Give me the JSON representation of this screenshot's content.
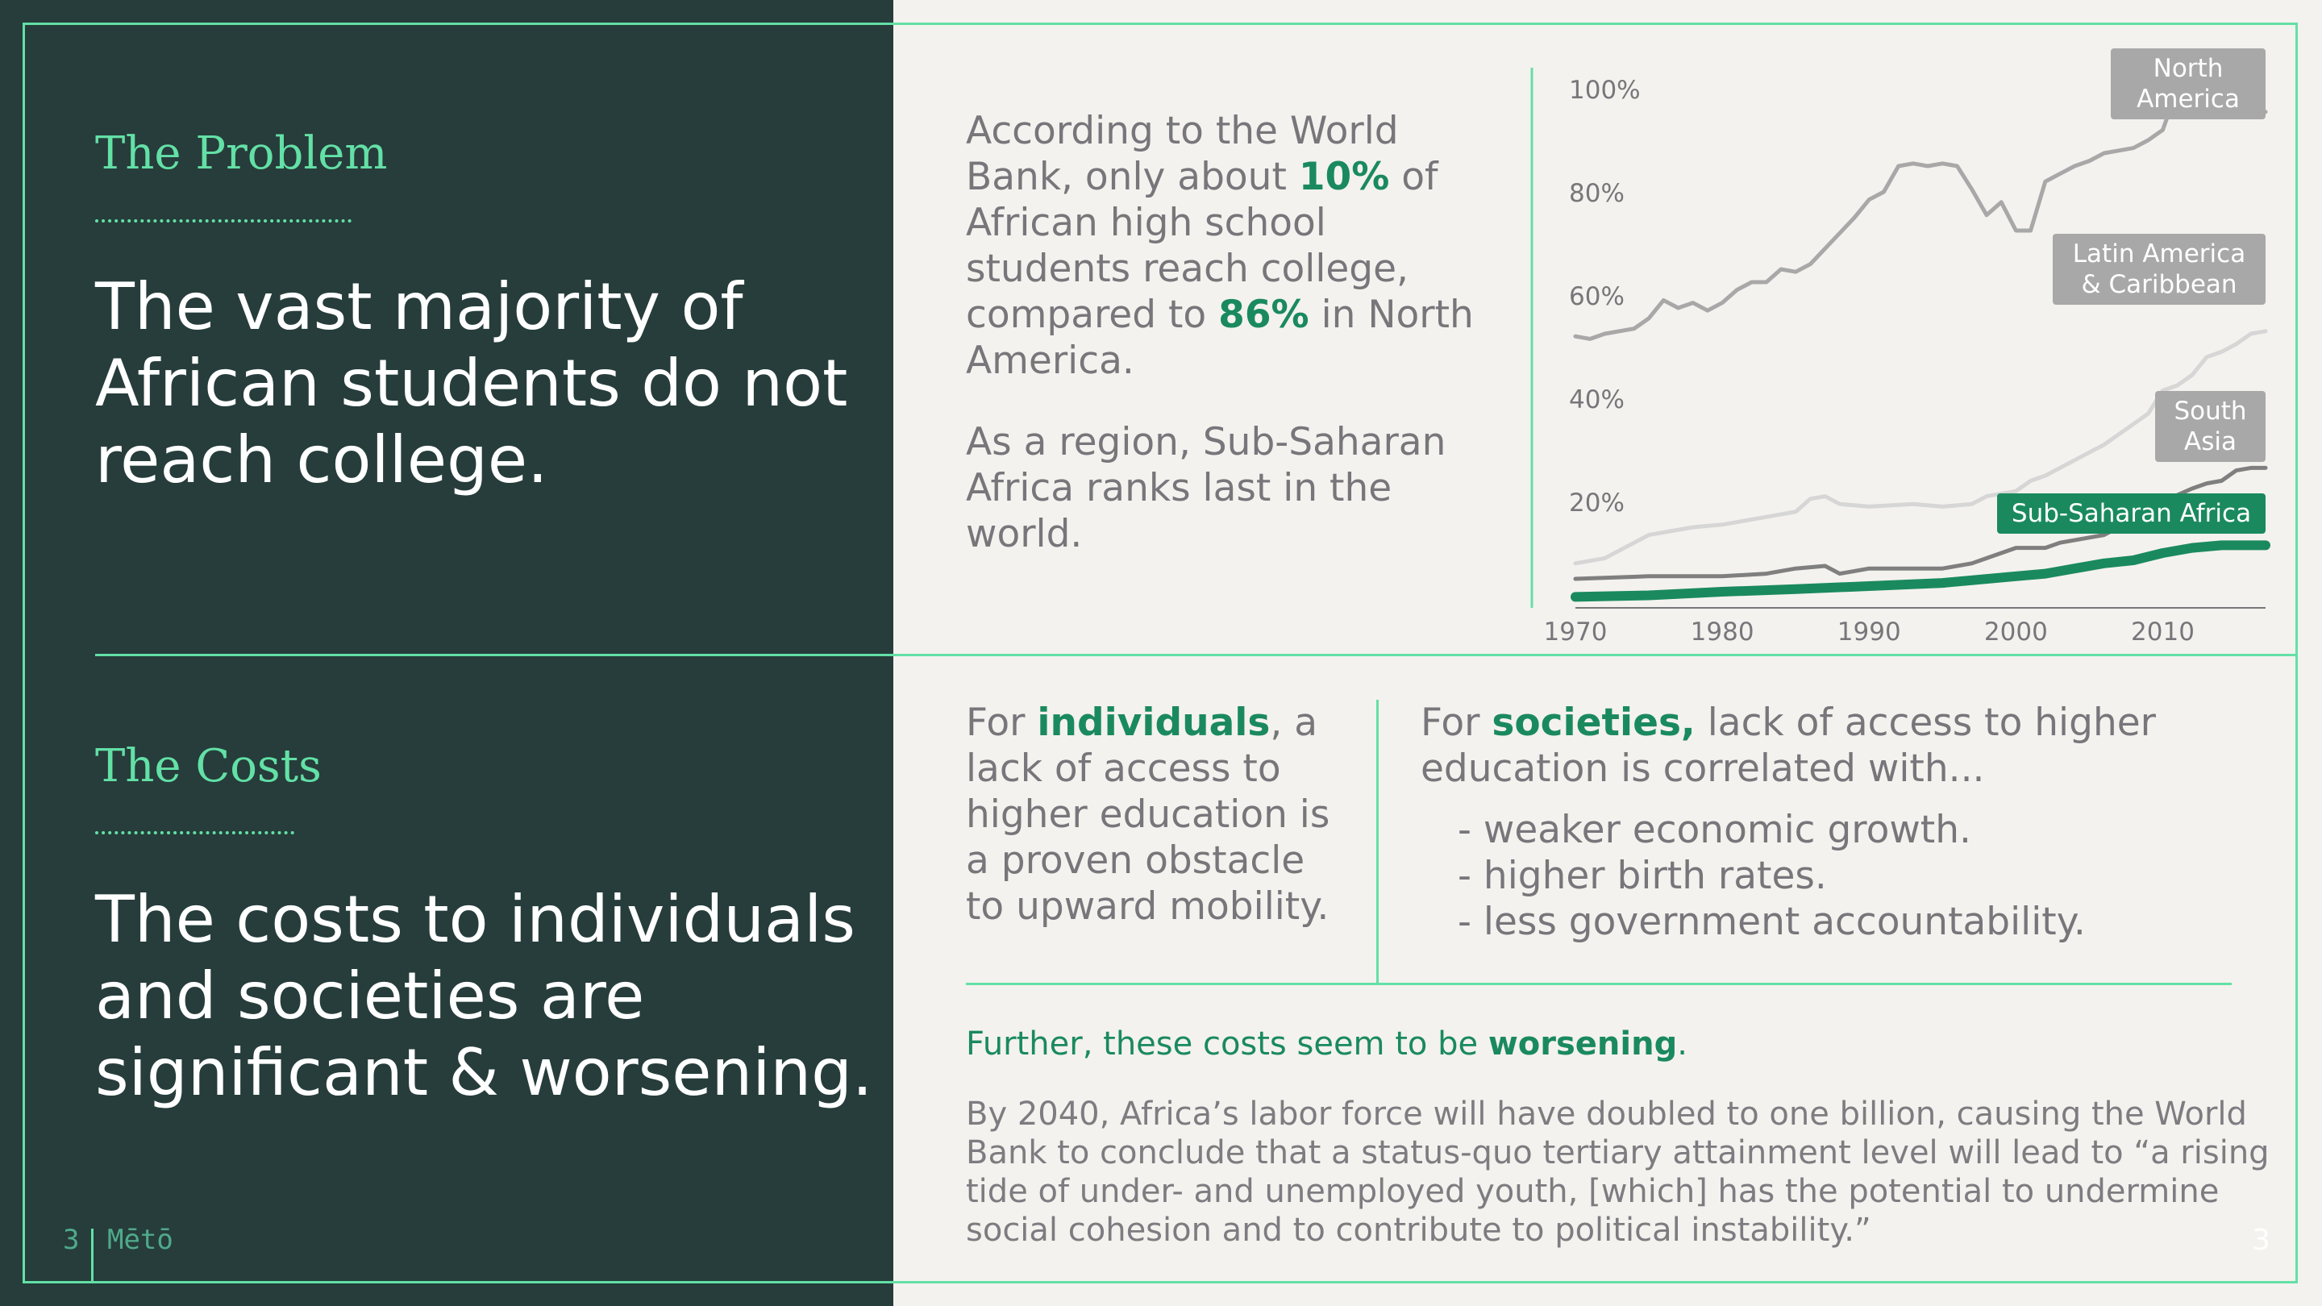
{
  "problem": {
    "section_title": "The Problem",
    "headline": "The vast majority of African students do not reach college.",
    "para1_a": "According to the World Bank, only about ",
    "para1_b": "10%",
    "para1_c": " of African high school students reach college, compared to ",
    "para1_d": "86%",
    "para1_e": " in North America.",
    "para2": "As a region, Sub-Saharan Africa ranks last in the world."
  },
  "costs": {
    "section_title": "The Costs",
    "headline": "The costs to individuals and societies are significant & worsening.",
    "ind_a": "For ",
    "ind_b": "individuals",
    "ind_c": ", a lack of access to higher education is a proven obstacle to upward mobility.",
    "soc_a": "For ",
    "soc_b": "societies,",
    "soc_c": " lack of access to higher education is correlated with...",
    "list": [
      "- weaker economic growth.",
      "- higher birth rates.",
      "- less government accountability."
    ],
    "further_a": "Further, these costs seem to be ",
    "further_b": "worsening",
    "further_c": ".",
    "quote": "By 2040, Africa’s labor force will have doubled to one billion, causing the World Bank to conclude that a status-quo tertiary attainment level will lead to “a rising tide of under- and unemployed youth, [which] has the potential to undermine social cohesion and to contribute to political instability.”"
  },
  "footer": {
    "page": "3",
    "brand": "Mētō",
    "corner_page": "3"
  },
  "colors": {
    "dark_panel": "#263d3b",
    "accent": "#63e0a6",
    "green": "#1a8a5e",
    "background": "#f4f2ee"
  },
  "chart_data": {
    "type": "line",
    "title": "",
    "xlabel": "",
    "ylabel": "",
    "xlim": [
      1970,
      2017
    ],
    "ylim": [
      0,
      100
    ],
    "xticks": [
      "1970",
      "1980",
      "1990",
      "2000",
      "2010"
    ],
    "yticks": [
      "20%",
      "40%",
      "60%",
      "80%",
      "100%"
    ],
    "grid": false,
    "series": [
      {
        "name": "North America",
        "color": "#a8a8a8",
        "x": [
          1970,
          1971,
          1972,
          1973,
          1974,
          1975,
          1976,
          1977,
          1978,
          1979,
          1980,
          1981,
          1982,
          1983,
          1984,
          1985,
          1986,
          1987,
          1988,
          1989,
          1990,
          1991,
          1992,
          1993,
          1994,
          1995,
          1996,
          1997,
          1998,
          1999,
          2000,
          2001,
          2002,
          2003,
          2004,
          2005,
          2006,
          2007,
          2008,
          2009,
          2010,
          2011,
          2012,
          2013,
          2014,
          2015,
          2016,
          2017
        ],
        "values": [
          52,
          51.5,
          52.5,
          53,
          53.5,
          55.5,
          59,
          57.5,
          58.5,
          57,
          58.5,
          61,
          62.5,
          62.5,
          65,
          64.5,
          66,
          69,
          72,
          75,
          78.5,
          80,
          85,
          85.5,
          85,
          85.5,
          85,
          80.5,
          75.5,
          78,
          72.5,
          72.5,
          82,
          83.5,
          85,
          86,
          87.5,
          88,
          88.5,
          90,
          92,
          100,
          100,
          96.5,
          95.5,
          95.5,
          95.5,
          95.5
        ]
      },
      {
        "name": "Latin America & Caribbean",
        "color": "#d6d6d6",
        "x": [
          1970,
          1972,
          1975,
          1978,
          1980,
          1983,
          1985,
          1986,
          1987,
          1988,
          1990,
          1993,
          1995,
          1997,
          1998,
          2000,
          2001,
          2002,
          2004,
          2005,
          2006,
          2008,
          2009,
          2010,
          2011,
          2012,
          2013,
          2014,
          2015,
          2016,
          2017
        ],
        "values": [
          8,
          9,
          13.5,
          15,
          15.5,
          17,
          18,
          20.5,
          21,
          19.5,
          19,
          19.5,
          19,
          19.5,
          21,
          22,
          24,
          25,
          28,
          29.5,
          31,
          35,
          37,
          41.5,
          42.5,
          44.5,
          48,
          49,
          50.5,
          52.5,
          53
        ]
      },
      {
        "name": "South Asia",
        "color": "#7f7f7f",
        "x": [
          1970,
          1975,
          1980,
          1983,
          1985,
          1987,
          1988,
          1989,
          1990,
          1993,
          1995,
          1997,
          1998,
          2000,
          2002,
          2003,
          2005,
          2006,
          2007,
          2008,
          2010,
          2012,
          2013,
          2014,
          2015,
          2016,
          2017
        ],
        "values": [
          5,
          5.5,
          5.5,
          6,
          7,
          7.5,
          6,
          6.5,
          7,
          7,
          7,
          8,
          9,
          11,
          11,
          12,
          13,
          13.5,
          15,
          16,
          20,
          22.5,
          23.5,
          24,
          26,
          26.5,
          26.5
        ]
      },
      {
        "name": "Sub-Saharan Africa",
        "color": "#1a8a5e",
        "x": [
          1970,
          1975,
          1980,
          1985,
          1990,
          1995,
          2000,
          2002,
          2004,
          2006,
          2008,
          2010,
          2012,
          2014,
          2017
        ],
        "values": [
          1.5,
          1.8,
          2.5,
          3,
          3.6,
          4.2,
          5.5,
          6,
          7,
          8,
          8.6,
          10,
          11,
          11.5,
          11.5
        ]
      }
    ]
  }
}
